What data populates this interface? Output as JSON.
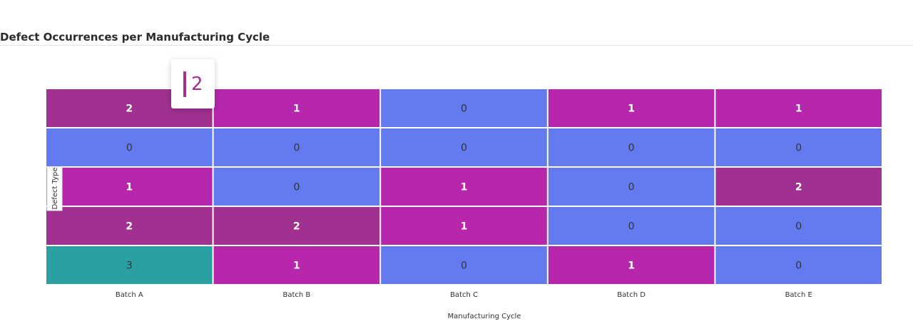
{
  "header": {
    "title": "Defect Occurrences per Manufacturing Cycle"
  },
  "tooltip": {
    "value": "2",
    "color": "#a03191"
  },
  "colors": {
    "0": "#647aef",
    "1": "#b627ac",
    "2": "#a03191",
    "3": "#2aa0a3",
    "label_light": "#ffffff",
    "label_dark": "#333333"
  },
  "chart_data": {
    "type": "heatmap",
    "title": "Defect Occurrences per Manufacturing Cycle",
    "xlabel": "Manufacturing Cycle",
    "ylabel": "Defect Type",
    "x": [
      "Batch A",
      "Batch B",
      "Batch C",
      "Batch D",
      "Batch E"
    ],
    "y": [
      "",
      "",
      "",
      "",
      ""
    ],
    "values": [
      [
        2,
        1,
        0,
        1,
        1
      ],
      [
        0,
        0,
        0,
        0,
        0
      ],
      [
        1,
        0,
        1,
        0,
        2
      ],
      [
        2,
        2,
        1,
        0,
        0
      ],
      [
        3,
        1,
        0,
        1,
        0
      ]
    ],
    "grid": false
  }
}
